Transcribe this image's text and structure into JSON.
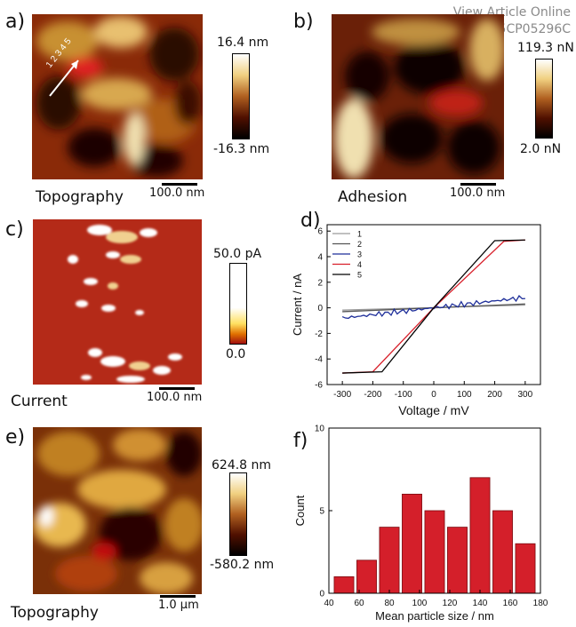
{
  "watermark": {
    "line1": "View Article Online",
    "line2": "DOI: 10.1039/C5CP05296C"
  },
  "panels": {
    "a": {
      "letter": "a)",
      "caption": "Topography",
      "cb_max": "16.4 nm",
      "cb_min": "-16.3 nm",
      "scale": "100.0 nm",
      "profile_label": "1 2 3 4 5"
    },
    "b": {
      "letter": "b)",
      "caption": "Adhesion",
      "cb_max": "119.3 nN",
      "cb_min": "2.0 nN",
      "scale": "100.0 nm"
    },
    "c": {
      "letter": "c)",
      "caption": "Current",
      "cb_max": "50.0 pA",
      "cb_min": "0.0",
      "scale": "100.0 nm"
    },
    "d": {
      "letter": "d)"
    },
    "e": {
      "letter": "e)",
      "caption": "Topography",
      "cb_max": "624.8 nm",
      "cb_min": "-580.2 nm",
      "scale": "1.0 µm"
    },
    "f": {
      "letter": "f)"
    }
  },
  "colors": {
    "line1": "#9a9a9a",
    "line2": "#555555",
    "line3": "#1f2f9a",
    "line4": "#d81f2a",
    "line5": "#000000",
    "hist_bar": "#d41f2a"
  },
  "chart_data": [
    {
      "id": "d",
      "type": "line",
      "xlabel": "Voltage / mV",
      "ylabel": "Current / nA",
      "xlim": [
        -350,
        350
      ],
      "ylim": [
        -6,
        6.5
      ],
      "xticks": [
        -300,
        -200,
        -100,
        0,
        100,
        200,
        300
      ],
      "yticks": [
        -6,
        -4,
        -2,
        0,
        2,
        4,
        6
      ],
      "legend_position": "top-left",
      "series": [
        {
          "name": "1",
          "color": "#9a9a9a",
          "x": [
            -300,
            300
          ],
          "y": [
            -0.18,
            0.22
          ]
        },
        {
          "name": "2",
          "color": "#555555",
          "x": [
            -300,
            300
          ],
          "y": [
            -0.3,
            0.3
          ]
        },
        {
          "name": "3",
          "color": "#1f2f9a",
          "x": [
            -300,
            -200,
            -100,
            0,
            100,
            200,
            250,
            300
          ],
          "y": [
            -0.8,
            -0.55,
            -0.3,
            0,
            0.3,
            0.55,
            0.75,
            0.8
          ]
        },
        {
          "name": "4",
          "color": "#d81f2a",
          "x": [
            -300,
            -200,
            0,
            230,
            300
          ],
          "y": [
            -5.1,
            -5.0,
            0,
            5.2,
            5.3
          ]
        },
        {
          "name": "5",
          "color": "#000000",
          "x": [
            -300,
            -170,
            0,
            200,
            300
          ],
          "y": [
            -5.1,
            -5.0,
            0,
            5.25,
            5.3
          ]
        }
      ]
    },
    {
      "id": "f",
      "type": "bar",
      "xlabel": "Mean particle size / nm",
      "ylabel": "Count",
      "xlim": [
        40,
        180
      ],
      "ylim": [
        0,
        10
      ],
      "xticks": [
        40,
        60,
        80,
        100,
        120,
        140,
        160,
        180
      ],
      "yticks": [
        0,
        5,
        10
      ],
      "x": [
        50,
        65,
        80,
        95,
        110,
        125,
        140,
        155,
        170
      ],
      "values": [
        1,
        2,
        4,
        6,
        5,
        4,
        7,
        5,
        3
      ],
      "bar_width": 13
    }
  ]
}
